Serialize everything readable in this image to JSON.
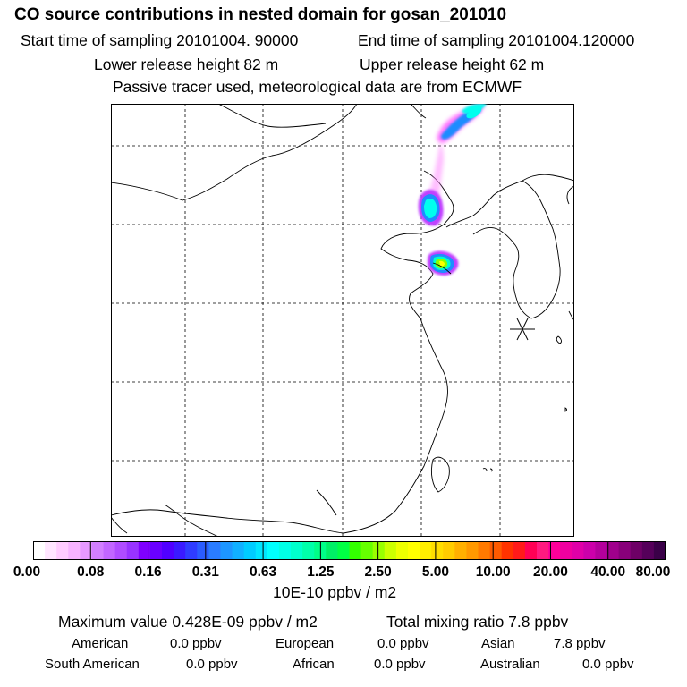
{
  "title": "CO  source contributions in nested domain for gosan_201010",
  "sampling": {
    "start": "Start time of sampling 20101004. 90000",
    "end": "End time of sampling 20101004.120000"
  },
  "release": {
    "lower": "Lower release height   82 m",
    "upper": "Upper release height   62 m"
  },
  "tracer_note": "Passive tracer used, meteorological data are from ECMWF",
  "colorbar": {
    "ticks": [
      "0.00",
      "0.08",
      "0.16",
      "0.31",
      "0.63",
      "1.25",
      "2.50",
      "5.00",
      "10.00",
      "20.00",
      "40.00",
      "80.00"
    ],
    "units": "10E-10 ppbv / m2",
    "colors": [
      "#ffffff",
      "#ffe6ff",
      "#ffccff",
      "#f7b3ff",
      "#e699ff",
      "#d27fff",
      "#c266ff",
      "#b04cff",
      "#9933ff",
      "#8000ff",
      "#6a00ff",
      "#5000ff",
      "#3a1aff",
      "#2f3cff",
      "#2b5cff",
      "#2a7cff",
      "#1d96ff",
      "#11b0ff",
      "#00ccff",
      "#00e6ff",
      "#00ffff",
      "#00ffe6",
      "#00ffcc",
      "#00ffaa",
      "#00ff88",
      "#00f066",
      "#00ff44",
      "#33ff00",
      "#66ff00",
      "#99ff00",
      "#ccff00",
      "#eeff00",
      "#ffff00",
      "#ffee00",
      "#ffdd00",
      "#ffcc00",
      "#ffb000",
      "#ff9900",
      "#ff7a00",
      "#ff5a00",
      "#ff3300",
      "#ff1a1a",
      "#ff0055",
      "#ff1a80",
      "#ff0099",
      "#f000a0",
      "#e000a8",
      "#cc00aa",
      "#b4009c",
      "#a0008c",
      "#88007a",
      "#6e0066",
      "#55005a",
      "#3a0048"
    ]
  },
  "summary": {
    "max_value": "Maximum value  0.428E-09 ppbv / m2",
    "total_mixing": "Total mixing ratio       7.8 ppbv"
  },
  "regions": [
    {
      "name": "American",
      "value": "0.0 ppbv"
    },
    {
      "name": "European",
      "value": "0.0 ppbv"
    },
    {
      "name": "Asian",
      "value": "7.8 ppbv"
    },
    {
      "name": "South American",
      "value": "0.0 ppbv"
    },
    {
      "name": "African",
      "value": "0.0 ppbv"
    },
    {
      "name": "Australian",
      "value": "0.0 ppbv"
    }
  ],
  "map": {
    "receptor_marker": "asterisk-icon",
    "plume_colors": {
      "core": "#00ffee",
      "mid": "#1e8cff",
      "edge": "#c040ff",
      "halo": "#ff66ff",
      "hot": "#ffff00",
      "hotter": "#88ff00"
    }
  }
}
